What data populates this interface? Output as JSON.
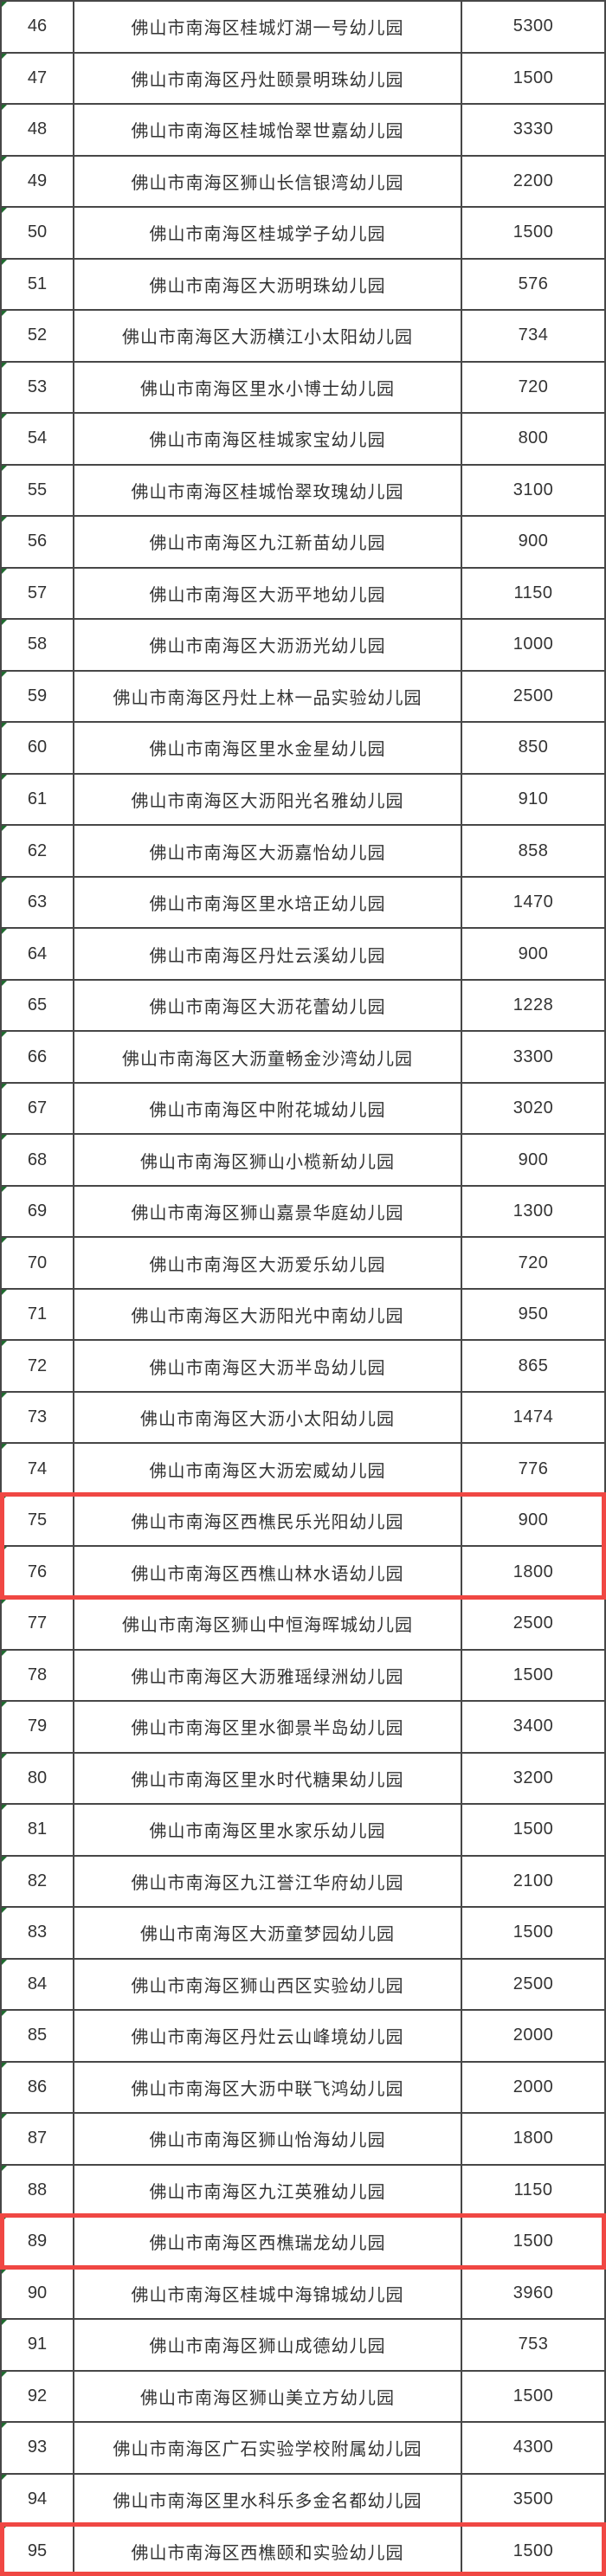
{
  "table": {
    "rows": [
      [
        "46",
        "佛山市南海区桂城灯湖一号幼儿园",
        "5300"
      ],
      [
        "47",
        "佛山市南海区丹灶颐景明珠幼儿园",
        "1500"
      ],
      [
        "48",
        "佛山市南海区桂城怡翠世嘉幼儿园",
        "3330"
      ],
      [
        "49",
        "佛山市南海区狮山长信银湾幼儿园",
        "2200"
      ],
      [
        "50",
        "佛山市南海区桂城学子幼儿园",
        "1500"
      ],
      [
        "51",
        "佛山市南海区大沥明珠幼儿园",
        "576"
      ],
      [
        "52",
        "佛山市南海区大沥横江小太阳幼儿园",
        "734"
      ],
      [
        "53",
        "佛山市南海区里水小博士幼儿园",
        "720"
      ],
      [
        "54",
        "佛山市南海区桂城家宝幼儿园",
        "800"
      ],
      [
        "55",
        "佛山市南海区桂城怡翠玫瑰幼儿园",
        "3100"
      ],
      [
        "56",
        "佛山市南海区九江新苗幼儿园",
        "900"
      ],
      [
        "57",
        "佛山市南海区大沥平地幼儿园",
        "1150"
      ],
      [
        "58",
        "佛山市南海区大沥沥光幼儿园",
        "1000"
      ],
      [
        "59",
        "佛山市南海区丹灶上林一品实验幼儿园",
        "2500"
      ],
      [
        "60",
        "佛山市南海区里水金星幼儿园",
        "850"
      ],
      [
        "61",
        "佛山市南海区大沥阳光名雅幼儿园",
        "910"
      ],
      [
        "62",
        "佛山市南海区大沥嘉怡幼儿园",
        "858"
      ],
      [
        "63",
        "佛山市南海区里水培正幼儿园",
        "1470"
      ],
      [
        "64",
        "佛山市南海区丹灶云溪幼儿园",
        "900"
      ],
      [
        "65",
        "佛山市南海区大沥花蕾幼儿园",
        "1228"
      ],
      [
        "66",
        "佛山市南海区大沥童畅金沙湾幼儿园",
        "3300"
      ],
      [
        "67",
        "佛山市南海区中附花城幼儿园",
        "3020"
      ],
      [
        "68",
        "佛山市南海区狮山小榄新幼儿园",
        "900"
      ],
      [
        "69",
        "佛山市南海区狮山嘉景华庭幼儿园",
        "1300"
      ],
      [
        "70",
        "佛山市南海区大沥爱乐幼儿园",
        "720"
      ],
      [
        "71",
        "佛山市南海区大沥阳光中南幼儿园",
        "950"
      ],
      [
        "72",
        "佛山市南海区大沥半岛幼儿园",
        "865"
      ],
      [
        "73",
        "佛山市南海区大沥小太阳幼儿园",
        "1474"
      ],
      [
        "74",
        "佛山市南海区大沥宏威幼儿园",
        "776"
      ],
      [
        "75",
        "佛山市南海区西樵民乐光阳幼儿园",
        "900"
      ],
      [
        "76",
        "佛山市南海区西樵山林水语幼儿园",
        "1800"
      ],
      [
        "77",
        "佛山市南海区狮山中恒海晖城幼儿园",
        "2500"
      ],
      [
        "78",
        "佛山市南海区大沥雅瑶绿洲幼儿园",
        "1500"
      ],
      [
        "79",
        "佛山市南海区里水御景半岛幼儿园",
        "3400"
      ],
      [
        "80",
        "佛山市南海区里水时代糖果幼儿园",
        "3200"
      ],
      [
        "81",
        "佛山市南海区里水家乐幼儿园",
        "1500"
      ],
      [
        "82",
        "佛山市南海区九江誉江华府幼儿园",
        "2100"
      ],
      [
        "83",
        "佛山市南海区大沥童梦园幼儿园",
        "1500"
      ],
      [
        "84",
        "佛山市南海区狮山西区实验幼儿园",
        "2500"
      ],
      [
        "85",
        "佛山市南海区丹灶云山峰境幼儿园",
        "2000"
      ],
      [
        "86",
        "佛山市南海区大沥中联飞鸿幼儿园",
        "2000"
      ],
      [
        "87",
        "佛山市南海区狮山怡海幼儿园",
        "1800"
      ],
      [
        "88",
        "佛山市南海区九江英雅幼儿园",
        "1150"
      ],
      [
        "89",
        "佛山市南海区西樵瑞龙幼儿园",
        "1500"
      ],
      [
        "90",
        "佛山市南海区桂城中海锦城幼儿园",
        "3960"
      ],
      [
        "91",
        "佛山市南海区狮山成德幼儿园",
        "753"
      ],
      [
        "92",
        "佛山市南海区狮山美立方幼儿园",
        "1500"
      ],
      [
        "93",
        "佛山市南海区广石实验学校附属幼儿园",
        "4300"
      ],
      [
        "94",
        "佛山市南海区里水科乐多金名都幼儿园",
        "3500"
      ],
      [
        "95",
        "佛山市南海区西樵颐和实验幼儿园",
        "1500"
      ]
    ]
  },
  "highlights": {
    "color": "#f04743",
    "groups": [
      {
        "rows": [
          75,
          76
        ]
      },
      {
        "rows": [
          89
        ]
      },
      {
        "rows": [
          95
        ]
      }
    ]
  },
  "colors": {
    "table_border": "#474747",
    "text": "#333333",
    "highlight_red": "#f04743",
    "corner_marker_green": "#1f6b2f",
    "background": "#ffffff"
  }
}
